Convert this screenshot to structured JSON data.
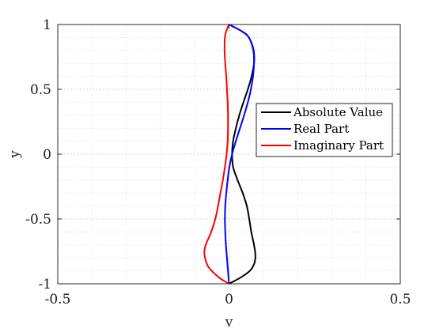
{
  "chart_data": {
    "type": "line",
    "title": "",
    "xlabel": "v",
    "ylabel": "y",
    "xlim": [
      -0.5,
      0.5
    ],
    "ylim": [
      -1,
      1
    ],
    "x_ticks": [
      -0.5,
      0,
      0.5
    ],
    "x_tick_labels": [
      "-0.5",
      "0",
      "0.5"
    ],
    "y_ticks": [
      -1,
      -0.5,
      0,
      0.5,
      1
    ],
    "y_tick_labels": [
      "-1",
      "-0.5",
      "0",
      "0.5",
      "1"
    ],
    "grid": true,
    "minor_grid": true,
    "legend_position": "right",
    "series": [
      {
        "name": "Absolute Value",
        "color": "#000000",
        "points": [
          [
            0.0,
            -1.0
          ],
          [
            0.035,
            -0.95
          ],
          [
            0.061,
            -0.9
          ],
          [
            0.073,
            -0.85
          ],
          [
            0.077,
            -0.8
          ],
          [
            0.076,
            -0.75
          ],
          [
            0.073,
            -0.7
          ],
          [
            0.069,
            -0.65
          ],
          [
            0.065,
            -0.6
          ],
          [
            0.059,
            -0.5
          ],
          [
            0.052,
            -0.4
          ],
          [
            0.04,
            -0.3
          ],
          [
            0.025,
            -0.2
          ],
          [
            0.012,
            -0.1
          ],
          [
            0.009,
            0.0
          ],
          [
            0.012,
            0.1
          ],
          [
            0.02,
            0.2
          ],
          [
            0.03,
            0.3
          ],
          [
            0.042,
            0.4
          ],
          [
            0.055,
            0.5
          ],
          [
            0.066,
            0.6
          ],
          [
            0.073,
            0.7
          ],
          [
            0.072,
            0.8
          ],
          [
            0.058,
            0.9
          ],
          [
            0.036,
            0.95
          ],
          [
            0.0,
            1.0
          ]
        ]
      },
      {
        "name": "Real Part",
        "color": "#0000ff",
        "points": [
          [
            0.0,
            -1.0
          ],
          [
            -0.003,
            -0.9
          ],
          [
            -0.006,
            -0.8
          ],
          [
            -0.009,
            -0.7
          ],
          [
            -0.011,
            -0.6
          ],
          [
            -0.012,
            -0.5
          ],
          [
            -0.011,
            -0.4
          ],
          [
            -0.008,
            -0.3
          ],
          [
            -0.004,
            -0.2
          ],
          [
            0.001,
            -0.1
          ],
          [
            0.009,
            0.0
          ],
          [
            0.02,
            0.1
          ],
          [
            0.032,
            0.2
          ],
          [
            0.044,
            0.3
          ],
          [
            0.055,
            0.4
          ],
          [
            0.064,
            0.5
          ],
          [
            0.07,
            0.6
          ],
          [
            0.073,
            0.7
          ],
          [
            0.071,
            0.8
          ],
          [
            0.058,
            0.9
          ],
          [
            0.036,
            0.95
          ],
          [
            0.0,
            1.0
          ]
        ]
      },
      {
        "name": "Imaginary Part",
        "color": "#ff0000",
        "points": [
          [
            0.0,
            -1.0
          ],
          [
            -0.03,
            -0.95
          ],
          [
            -0.06,
            -0.87
          ],
          [
            -0.07,
            -0.8
          ],
          [
            -0.072,
            -0.75
          ],
          [
            -0.068,
            -0.7
          ],
          [
            -0.06,
            -0.65
          ],
          [
            -0.052,
            -0.6
          ],
          [
            -0.04,
            -0.5
          ],
          [
            -0.032,
            -0.4
          ],
          [
            -0.025,
            -0.3
          ],
          [
            -0.018,
            -0.2
          ],
          [
            -0.012,
            -0.1
          ],
          [
            -0.007,
            0.0
          ],
          [
            -0.004,
            0.1
          ],
          [
            -0.003,
            0.2
          ],
          [
            -0.003,
            0.3
          ],
          [
            -0.004,
            0.4
          ],
          [
            -0.006,
            0.5
          ],
          [
            -0.008,
            0.6
          ],
          [
            -0.011,
            0.7
          ],
          [
            -0.013,
            0.8
          ],
          [
            -0.012,
            0.9
          ],
          [
            -0.008,
            0.95
          ],
          [
            0.0,
            1.0
          ]
        ]
      }
    ]
  }
}
